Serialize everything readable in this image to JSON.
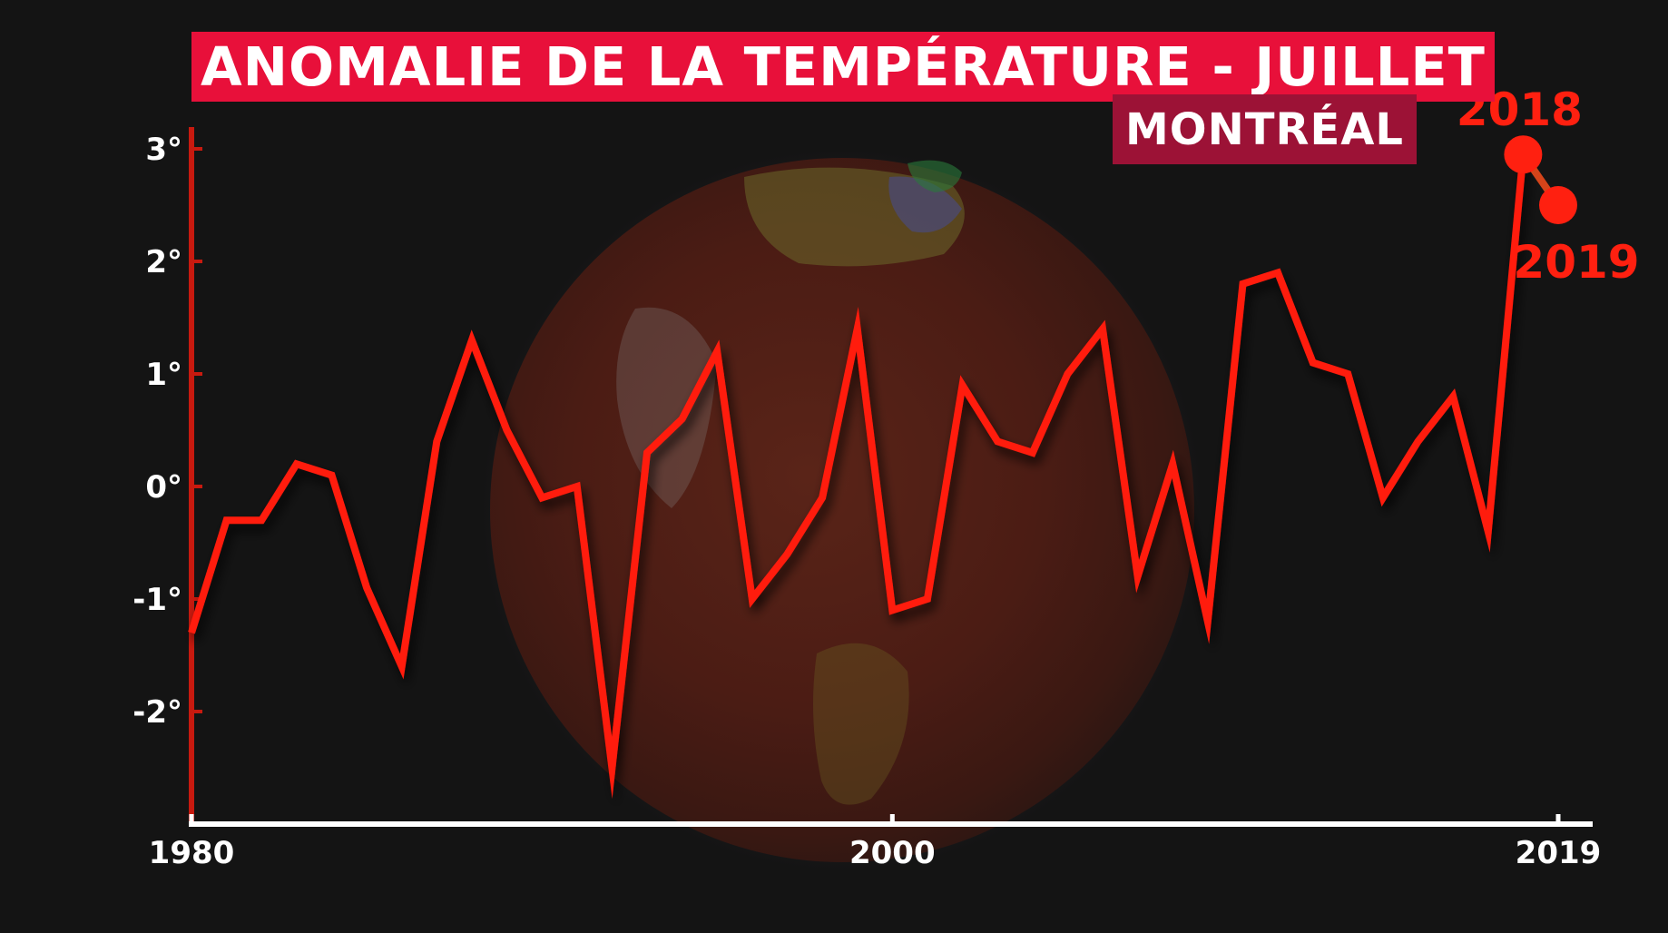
{
  "header": {
    "title": "ANOMALIE DE LA TEMPÉRATURE - JUILLET",
    "subtitle": "MONTRÉAL"
  },
  "colors": {
    "background": "#141414",
    "line": "#ff1a0a",
    "title_bg": "#e8103a",
    "subtitle_bg": "#9c1236",
    "axis_white": "#ffffff",
    "axis_red": "#c81a0f",
    "highlight": "#ff2010"
  },
  "chart_data": {
    "type": "line",
    "title": "ANOMALIE DE LA TEMPÉRATURE - JUILLET",
    "subtitle": "MONTRÉAL",
    "xlabel": "",
    "ylabel": "",
    "xlim": [
      1980,
      2019
    ],
    "ylim": [
      -3,
      3.2
    ],
    "x_ticks": [
      1980,
      2000,
      2019
    ],
    "x_tick_labels": [
      "1980",
      "2000",
      "2019"
    ],
    "y_ticks": [
      3,
      2,
      1,
      0,
      -1,
      -2
    ],
    "y_tick_labels": [
      "3°",
      "2°",
      "1°",
      "0°",
      "-1°",
      "-2°"
    ],
    "grid": false,
    "series": [
      {
        "x": [
          1980,
          1981,
          1982,
          1983,
          1984,
          1985,
          1986,
          1987,
          1988,
          1989,
          1990,
          1991,
          1992,
          1993,
          1994,
          1995,
          1996,
          1997,
          1998,
          1999,
          2000,
          2001,
          2002,
          2003,
          2004,
          2005,
          2006,
          2007,
          2008,
          2009,
          2010,
          2011,
          2012,
          2013,
          2014,
          2015,
          2016,
          2017,
          2018,
          2019
        ],
        "values": [
          -1.3,
          -0.3,
          -0.3,
          0.2,
          0.1,
          -0.9,
          -1.6,
          0.4,
          1.3,
          0.5,
          -0.1,
          0.0,
          -2.5,
          0.3,
          0.6,
          1.2,
          -1.0,
          -0.6,
          -0.1,
          1.4,
          -1.1,
          -1.0,
          0.9,
          0.4,
          0.3,
          1.0,
          1.4,
          -0.8,
          0.2,
          -1.2,
          1.8,
          1.9,
          1.1,
          1.0,
          -0.1,
          0.4,
          0.8,
          -0.4,
          2.95,
          2.5
        ]
      }
    ],
    "annotations": [
      {
        "year": 2018,
        "label": "2018",
        "value": 2.95
      },
      {
        "year": 2019,
        "label": "2019",
        "value": 2.5
      }
    ]
  }
}
